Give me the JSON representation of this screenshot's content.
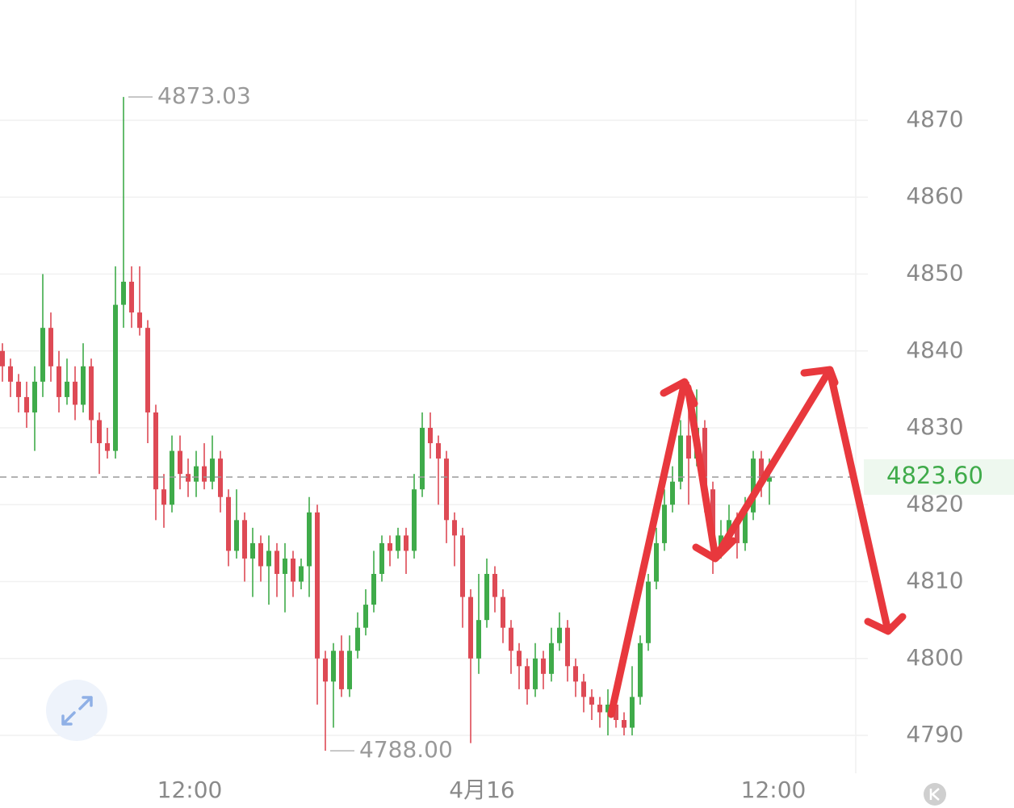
{
  "chart_data": {
    "type": "candlestick",
    "open": [
      4840,
      4838,
      4836,
      4834,
      4832,
      4836,
      4843,
      4838,
      4834,
      4836,
      4833,
      4838,
      4831,
      4828,
      4827,
      4846,
      4849,
      4845,
      4843,
      4832,
      4822,
      4820,
      4827,
      4824,
      4823,
      4825,
      4823,
      4826,
      4821,
      4814,
      4818,
      4813,
      4815,
      4812,
      4814,
      4811,
      4813,
      4810,
      4812,
      4819,
      4800,
      4797,
      4801,
      4796,
      4801,
      4804,
      4807,
      4811,
      4815,
      4814,
      4816,
      4814,
      4822,
      4830,
      4828,
      4826,
      4818,
      4816,
      4808,
      4800,
      4805,
      4811,
      4808,
      4804,
      4801,
      4799,
      4796,
      4800,
      4798,
      4802,
      4804,
      4799,
      4797,
      4795,
      4794,
      4793,
      4794,
      4792,
      4791,
      4795,
      4802,
      4810,
      4815,
      4820,
      4823,
      4829,
      4826,
      4830,
      4822,
      4814,
      4816,
      4818,
      4815,
      4819,
      4826,
      4823
    ],
    "high": [
      4841,
      4839,
      4837,
      4836,
      4838,
      4850,
      4845,
      4840,
      4839,
      4838,
      4841,
      4839,
      4832,
      4830,
      4851,
      4873.03,
      4851,
      4851,
      4844,
      4833,
      4824,
      4829,
      4829,
      4826,
      4827,
      4828,
      4829,
      4827,
      4822,
      4822,
      4819,
      4817,
      4816,
      4816,
      4815,
      4815,
      4814,
      4813,
      4821,
      4820,
      4801,
      4802,
      4803,
      4803,
      4806,
      4809,
      4814,
      4816,
      4816,
      4817,
      4817,
      4824,
      4832,
      4832,
      4829,
      4827,
      4819,
      4817,
      4809,
      4811,
      4813,
      4812,
      4809,
      4805,
      4802,
      4800,
      4802,
      4801,
      4804,
      4806,
      4805,
      4800,
      4798,
      4796,
      4795,
      4796,
      4795,
      4793,
      4799,
      4803,
      4811,
      4817,
      4822,
      4825,
      4831,
      4836,
      4835,
      4831,
      4823,
      4818,
      4820,
      4819,
      4821,
      4827,
      4827,
      4826
    ],
    "low": [
      4836,
      4834,
      4832,
      4830,
      4827,
      4834,
      4836,
      4832,
      4833,
      4831,
      4832,
      4828,
      4824,
      4826,
      4826,
      4843,
      4843,
      4842,
      4828,
      4818,
      4817,
      4819,
      4822,
      4821,
      4821,
      4822,
      4822,
      4819,
      4812,
      4813,
      4810,
      4808,
      4810,
      4807,
      4808,
      4806,
      4808,
      4809,
      4808,
      4794,
      4788,
      4791,
      4795,
      4795,
      4800,
      4803,
      4806,
      4810,
      4812,
      4813,
      4811,
      4813,
      4821,
      4826,
      4820,
      4815,
      4812,
      4804,
      4789,
      4798,
      4804,
      4806,
      4802,
      4798,
      4796,
      4794,
      4795,
      4796,
      4797,
      4801,
      4797,
      4795,
      4793,
      4792,
      4791,
      4790,
      4791,
      4790,
      4790,
      4794,
      4801,
      4809,
      4814,
      4819,
      4822,
      4820,
      4825,
      4819,
      4811,
      4813,
      4815,
      4813,
      4814,
      4818,
      4821,
      4820
    ],
    "close": [
      4838,
      4836,
      4834,
      4832,
      4836,
      4843,
      4838,
      4834,
      4836,
      4833,
      4838,
      4831,
      4828,
      4827,
      4846,
      4849,
      4845,
      4843,
      4832,
      4822,
      4820,
      4827,
      4824,
      4823,
      4825,
      4823,
      4826,
      4821,
      4814,
      4818,
      4813,
      4815,
      4812,
      4814,
      4811,
      4813,
      4810,
      4812,
      4819,
      4800,
      4797,
      4801,
      4796,
      4801,
      4804,
      4807,
      4811,
      4815,
      4814,
      4816,
      4814,
      4822,
      4830,
      4828,
      4826,
      4818,
      4816,
      4808,
      4800,
      4805,
      4811,
      4808,
      4804,
      4801,
      4799,
      4796,
      4800,
      4798,
      4802,
      4804,
      4799,
      4797,
      4795,
      4794,
      4793,
      4794,
      4792,
      4791,
      4795,
      4802,
      4810,
      4815,
      4820,
      4823,
      4829,
      4826,
      4830,
      4822,
      4814,
      4816,
      4818,
      4815,
      4819,
      4826,
      4823,
      4823.6
    ],
    "up_color": "#3fab4a",
    "down_color": "#de4a55",
    "high_label": "4873.03",
    "low_label": "4788.00",
    "last_price": {
      "value": 4823.6,
      "label": "4823.60"
    },
    "xlim": [
      -0.3,
      105.7
    ],
    "xticks": [
      {
        "value": 23.2,
        "label": "12:00"
      },
      {
        "value": 59.4,
        "label": "4月16"
      },
      {
        "value": 95.5,
        "label": "12:00"
      }
    ],
    "ylim": [
      4785.07,
      4885.64
    ],
    "yticks": [
      4790,
      4800,
      4810,
      4820,
      4830,
      4840,
      4850,
      4860,
      4870
    ],
    "grid": true
  }
}
